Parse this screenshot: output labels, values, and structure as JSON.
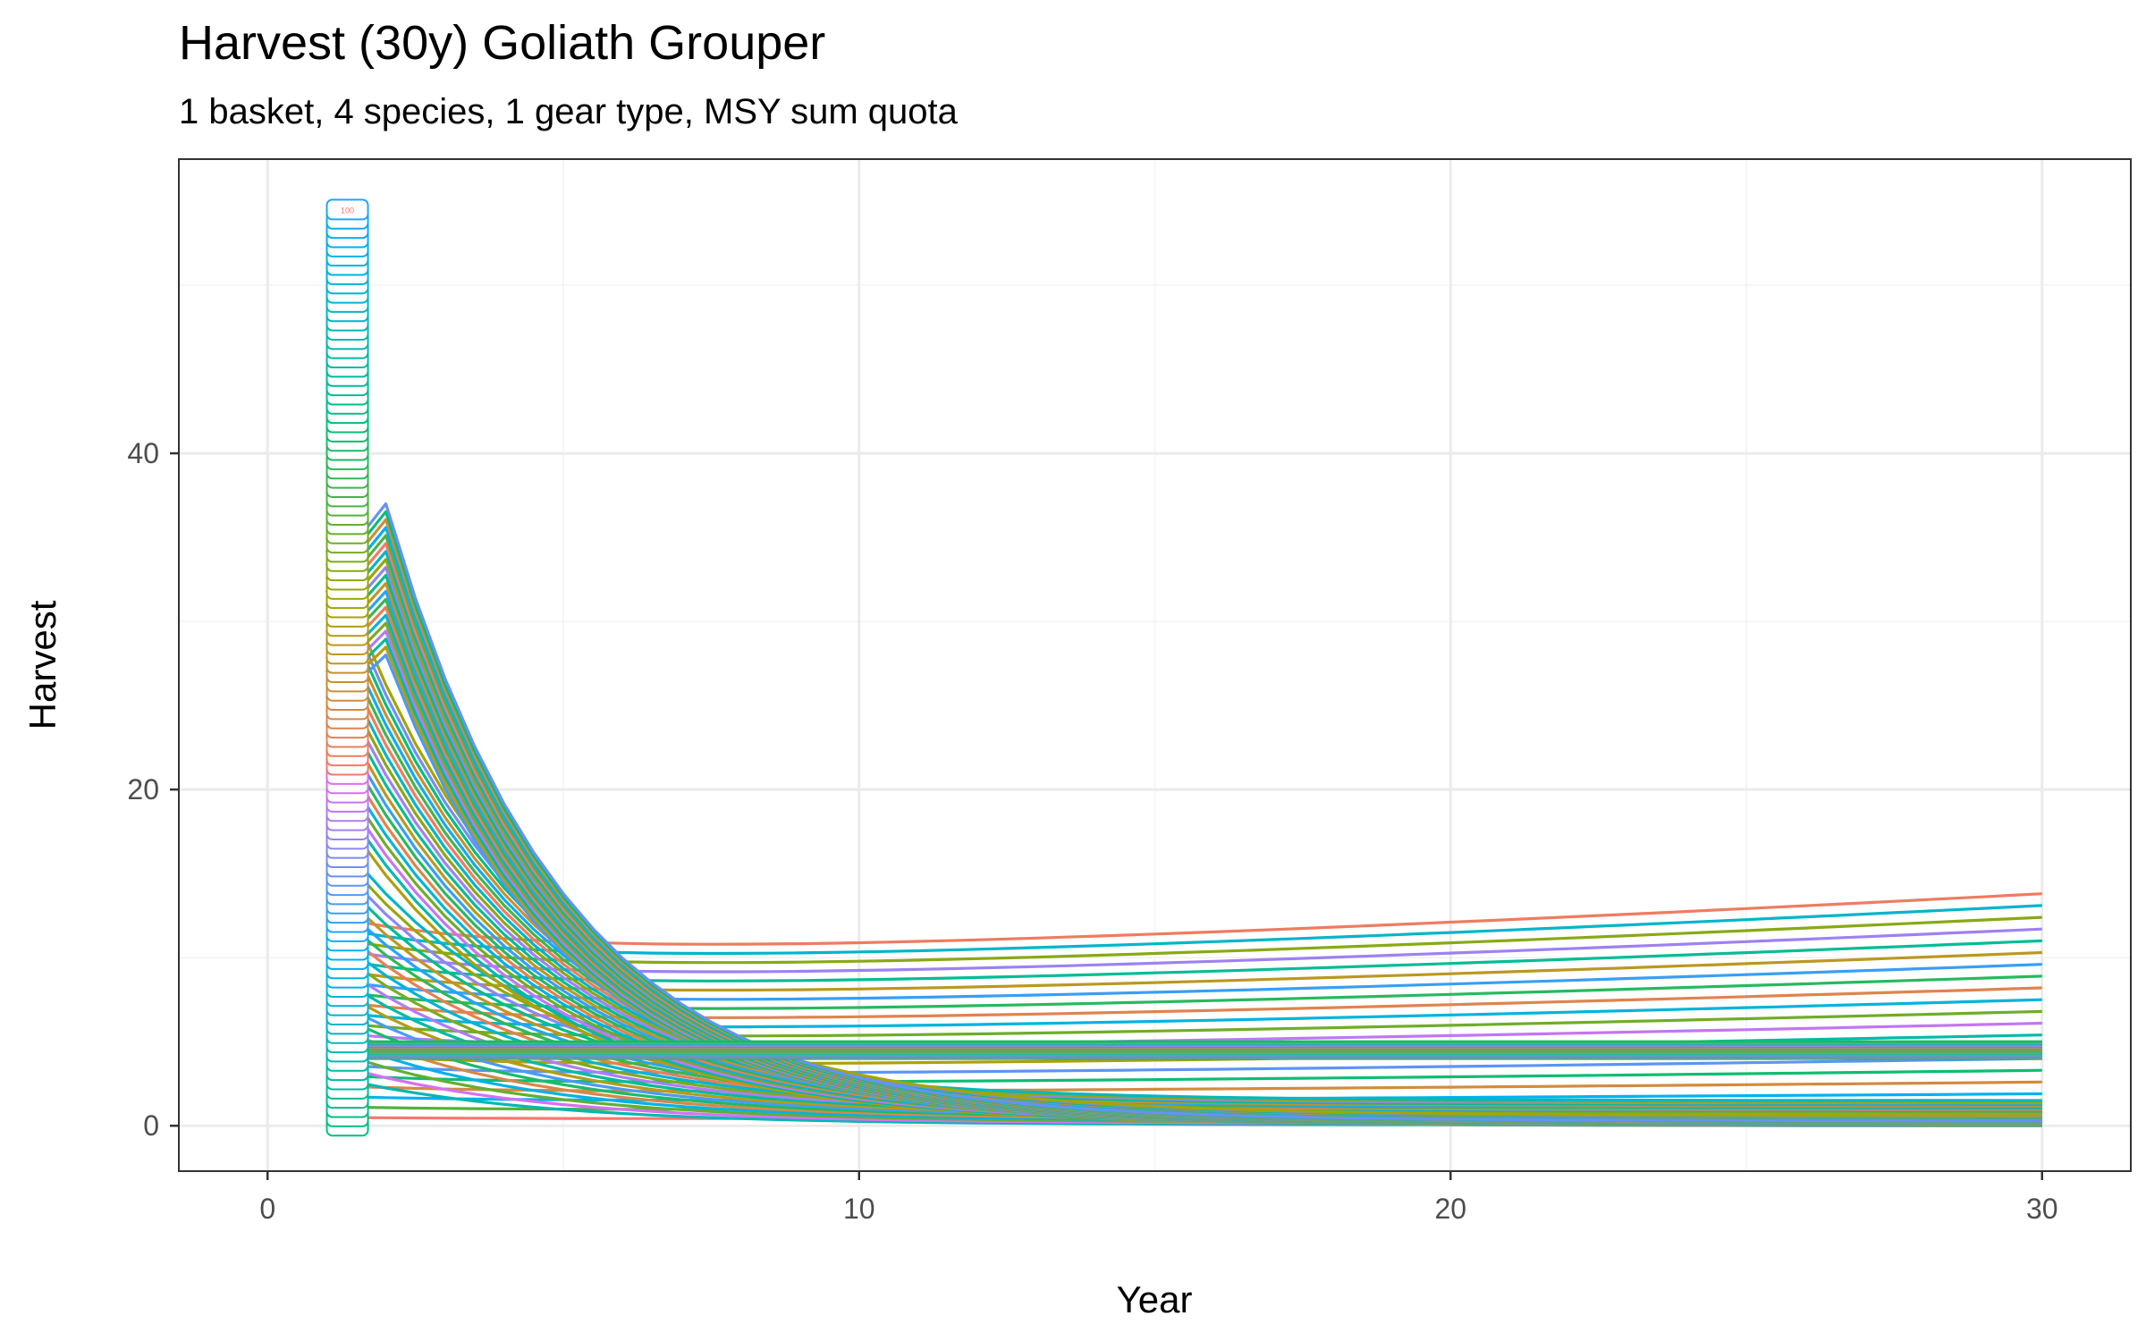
{
  "chart_data": {
    "type": "line",
    "title": "Harvest (30y) Goliath Grouper",
    "subtitle": "1 basket, 4 species, 1 gear type, MSY sum quota",
    "xlabel": "Year",
    "ylabel": "Harvest",
    "xlim": [
      -1.5,
      31.5
    ],
    "ylim": [
      -2.7,
      57.5
    ],
    "x_ticks": [
      "0",
      "10",
      "20",
      "30"
    ],
    "y_ticks": [
      "0",
      "20",
      "40"
    ],
    "grid": true,
    "legend": "none",
    "series_count": 100,
    "series_label_shown": "100",
    "series_x_range": [
      1,
      30
    ],
    "palette": [
      "#f8766d",
      "#a3a500",
      "#00bf7d",
      "#00b0f6",
      "#e76bf3"
    ],
    "families": [
      {
        "name": "",
        "count": 20,
        "start_range": [
          0.5,
          12.5
        ],
        "end_range": [
          0.5,
          13.8
        ],
        "style": "flat-rising"
      },
      {
        "name": "",
        "count": 20,
        "start_range": [
          3,
          18
        ],
        "end_range": [
          0.05,
          1.5
        ],
        "style": "decline"
      },
      {
        "name": "",
        "count": 20,
        "start_range": [
          20,
          35
        ],
        "end_range": [
          0.0,
          0.6
        ],
        "style": "decline"
      },
      {
        "name": "",
        "count": 20,
        "start_range": [
          28,
          37
        ],
        "end_range": [
          0.0,
          0.3
        ],
        "style": "peak-decline"
      },
      {
        "name": "",
        "count": 20,
        "start_range": [
          4,
          5
        ],
        "end_range": [
          4,
          5
        ],
        "style": "flat"
      }
    ],
    "label_column": {
      "x": 1.35,
      "y_range": [
        0,
        54.5
      ],
      "count": 100
    }
  }
}
